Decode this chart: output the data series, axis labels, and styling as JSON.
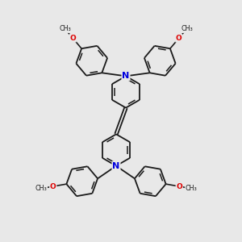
{
  "bg": "#e8e8e8",
  "black": "#1a1a1a",
  "blue": "#0000dd",
  "red": "#dd0000",
  "lw": 1.3,
  "lw_dbl": 1.1,
  "ring_r": 0.72,
  "xlim": [
    -4.5,
    4.5
  ],
  "ylim": [
    -5.5,
    5.5
  ]
}
